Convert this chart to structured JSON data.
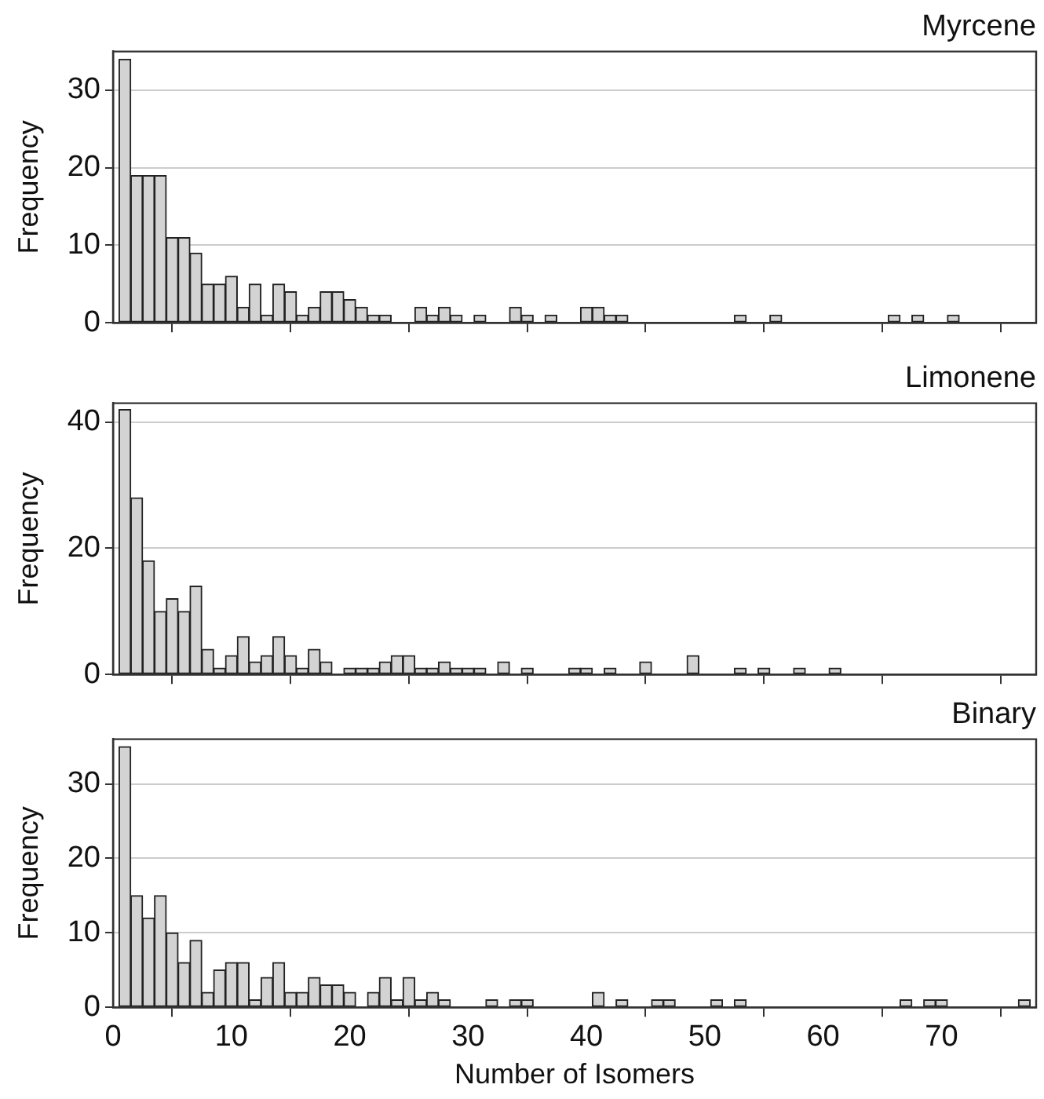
{
  "chart_data": [
    {
      "type": "histogram",
      "title": "Myrcene",
      "ylabel": "Frequency",
      "color": "#d3d3d3",
      "grid": "y",
      "tick_labels": "y",
      "bins": [
        0.5,
        1.5,
        2.5,
        3.5,
        4.5,
        5.5,
        6.5,
        7.5,
        8.5,
        9.5,
        10.5,
        11.5,
        12.5,
        13.5,
        14.5,
        15.5,
        16.5,
        17.5,
        18.5,
        19.5,
        20.5,
        21.5,
        22.5,
        23.5,
        24.5,
        25.5,
        26.5,
        27.5,
        28.5,
        29.5,
        30.5,
        31.5,
        32.5,
        33.5,
        34.5,
        35.5,
        36.5,
        37.5,
        38.5,
        39.5,
        40.5,
        41.5,
        42.5,
        43.5,
        44.5,
        45.5,
        46.5,
        47.5,
        48.5,
        49.5,
        50.5,
        51.5,
        52.5,
        53.5,
        54.5,
        55.5,
        56.5,
        57.5,
        58.5,
        59.5,
        60.5,
        61.5,
        62.5,
        63.5,
        64.5,
        65.5,
        66.5,
        67.5,
        68.5,
        69.5,
        70.5,
        71.5,
        72.5,
        73.5,
        74.5,
        75.5,
        76.5,
        77.5
      ],
      "values": [
        34,
        19,
        19,
        19,
        11,
        11,
        9,
        5,
        5,
        6,
        2,
        5,
        1,
        5,
        4,
        1,
        2,
        4,
        4,
        3,
        2,
        1,
        1,
        0,
        0,
        2,
        1,
        2,
        1,
        0,
        1,
        0,
        0,
        2,
        1,
        0,
        1,
        0,
        0,
        2,
        2,
        1,
        1,
        0,
        0,
        0,
        0,
        0,
        0,
        0,
        0,
        0,
        1,
        0,
        0,
        1,
        0,
        0,
        0,
        0,
        0,
        0,
        0,
        0,
        0,
        1,
        0,
        1,
        0,
        0,
        1,
        0,
        0,
        0,
        0,
        0,
        0
      ],
      "xlim": [
        0,
        78
      ],
      "xticks": [
        0,
        10,
        20,
        30,
        40,
        50,
        60,
        70
      ],
      "ylim": [
        0,
        35
      ],
      "yticks": [
        0,
        10,
        20,
        30
      ]
    },
    {
      "type": "histogram",
      "title": "Limonene",
      "ylabel": "Frequency",
      "color": "#d3d3d3",
      "grid": "y",
      "tick_labels": "y",
      "bins": [
        0.5,
        1.5,
        2.5,
        3.5,
        4.5,
        5.5,
        6.5,
        7.5,
        8.5,
        9.5,
        10.5,
        11.5,
        12.5,
        13.5,
        14.5,
        15.5,
        16.5,
        17.5,
        18.5,
        19.5,
        20.5,
        21.5,
        22.5,
        23.5,
        24.5,
        25.5,
        26.5,
        27.5,
        28.5,
        29.5,
        30.5,
        31.5,
        32.5,
        33.5,
        34.5,
        35.5,
        36.5,
        37.5,
        38.5,
        39.5,
        40.5,
        41.5,
        42.5,
        43.5,
        44.5,
        45.5,
        46.5,
        47.5,
        48.5,
        49.5,
        50.5,
        51.5,
        52.5,
        53.5,
        54.5,
        55.5,
        56.5,
        57.5,
        58.5,
        59.5,
        60.5,
        61.5,
        62.5,
        63.5,
        64.5,
        65.5,
        66.5,
        67.5,
        68.5,
        69.5,
        70.5,
        71.5,
        72.5,
        73.5,
        74.5,
        75.5,
        76.5,
        77.5
      ],
      "values": [
        42,
        28,
        18,
        10,
        12,
        10,
        14,
        4,
        1,
        3,
        6,
        2,
        3,
        6,
        3,
        1,
        4,
        2,
        0,
        1,
        1,
        1,
        2,
        3,
        3,
        1,
        1,
        2,
        1,
        1,
        1,
        0,
        2,
        0,
        1,
        0,
        0,
        0,
        1,
        1,
        0,
        1,
        0,
        0,
        2,
        0,
        0,
        0,
        3,
        0,
        0,
        0,
        1,
        0,
        1,
        0,
        0,
        1,
        0,
        0,
        1,
        0,
        0,
        0,
        0,
        0,
        0,
        0,
        0,
        0,
        0,
        0,
        0,
        0,
        0,
        0,
        0
      ],
      "xlim": [
        0,
        78
      ],
      "xticks": [
        0,
        10,
        20,
        30,
        40,
        50,
        60,
        70
      ],
      "ylim": [
        0,
        43
      ],
      "yticks": [
        0,
        20,
        40
      ]
    },
    {
      "type": "histogram",
      "title": "Binary",
      "ylabel": "Frequency",
      "xlabel": "Number of Isomers",
      "color": "#d3d3d3",
      "grid": "y",
      "bins": [
        0.5,
        1.5,
        2.5,
        3.5,
        4.5,
        5.5,
        6.5,
        7.5,
        8.5,
        9.5,
        10.5,
        11.5,
        12.5,
        13.5,
        14.5,
        15.5,
        16.5,
        17.5,
        18.5,
        19.5,
        20.5,
        21.5,
        22.5,
        23.5,
        24.5,
        25.5,
        26.5,
        27.5,
        28.5,
        29.5,
        30.5,
        31.5,
        32.5,
        33.5,
        34.5,
        35.5,
        36.5,
        37.5,
        38.5,
        39.5,
        40.5,
        41.5,
        42.5,
        43.5,
        44.5,
        45.5,
        46.5,
        47.5,
        48.5,
        49.5,
        50.5,
        51.5,
        52.5,
        53.5,
        54.5,
        55.5,
        56.5,
        57.5,
        58.5,
        59.5,
        60.5,
        61.5,
        62.5,
        63.5,
        64.5,
        65.5,
        66.5,
        67.5,
        68.5,
        69.5,
        70.5,
        71.5,
        72.5,
        73.5,
        74.5,
        75.5,
        76.5,
        77.5
      ],
      "values": [
        35,
        15,
        12,
        15,
        10,
        6,
        9,
        2,
        5,
        6,
        6,
        1,
        4,
        6,
        2,
        2,
        4,
        3,
        3,
        2,
        0,
        2,
        4,
        1,
        4,
        1,
        2,
        1,
        0,
        0,
        0,
        1,
        0,
        1,
        1,
        0,
        0,
        0,
        0,
        0,
        2,
        0,
        1,
        0,
        0,
        1,
        1,
        0,
        0,
        0,
        1,
        0,
        1,
        0,
        0,
        0,
        0,
        0,
        0,
        0,
        0,
        0,
        0,
        0,
        0,
        0,
        1,
        0,
        1,
        1,
        0,
        0,
        0,
        0,
        0,
        0,
        1
      ],
      "xlim": [
        0,
        78
      ],
      "xticks": [
        0,
        10,
        20,
        30,
        40,
        50,
        60,
        70
      ],
      "ylim": [
        0,
        36
      ],
      "yticks": [
        0,
        10,
        20,
        30
      ]
    }
  ]
}
